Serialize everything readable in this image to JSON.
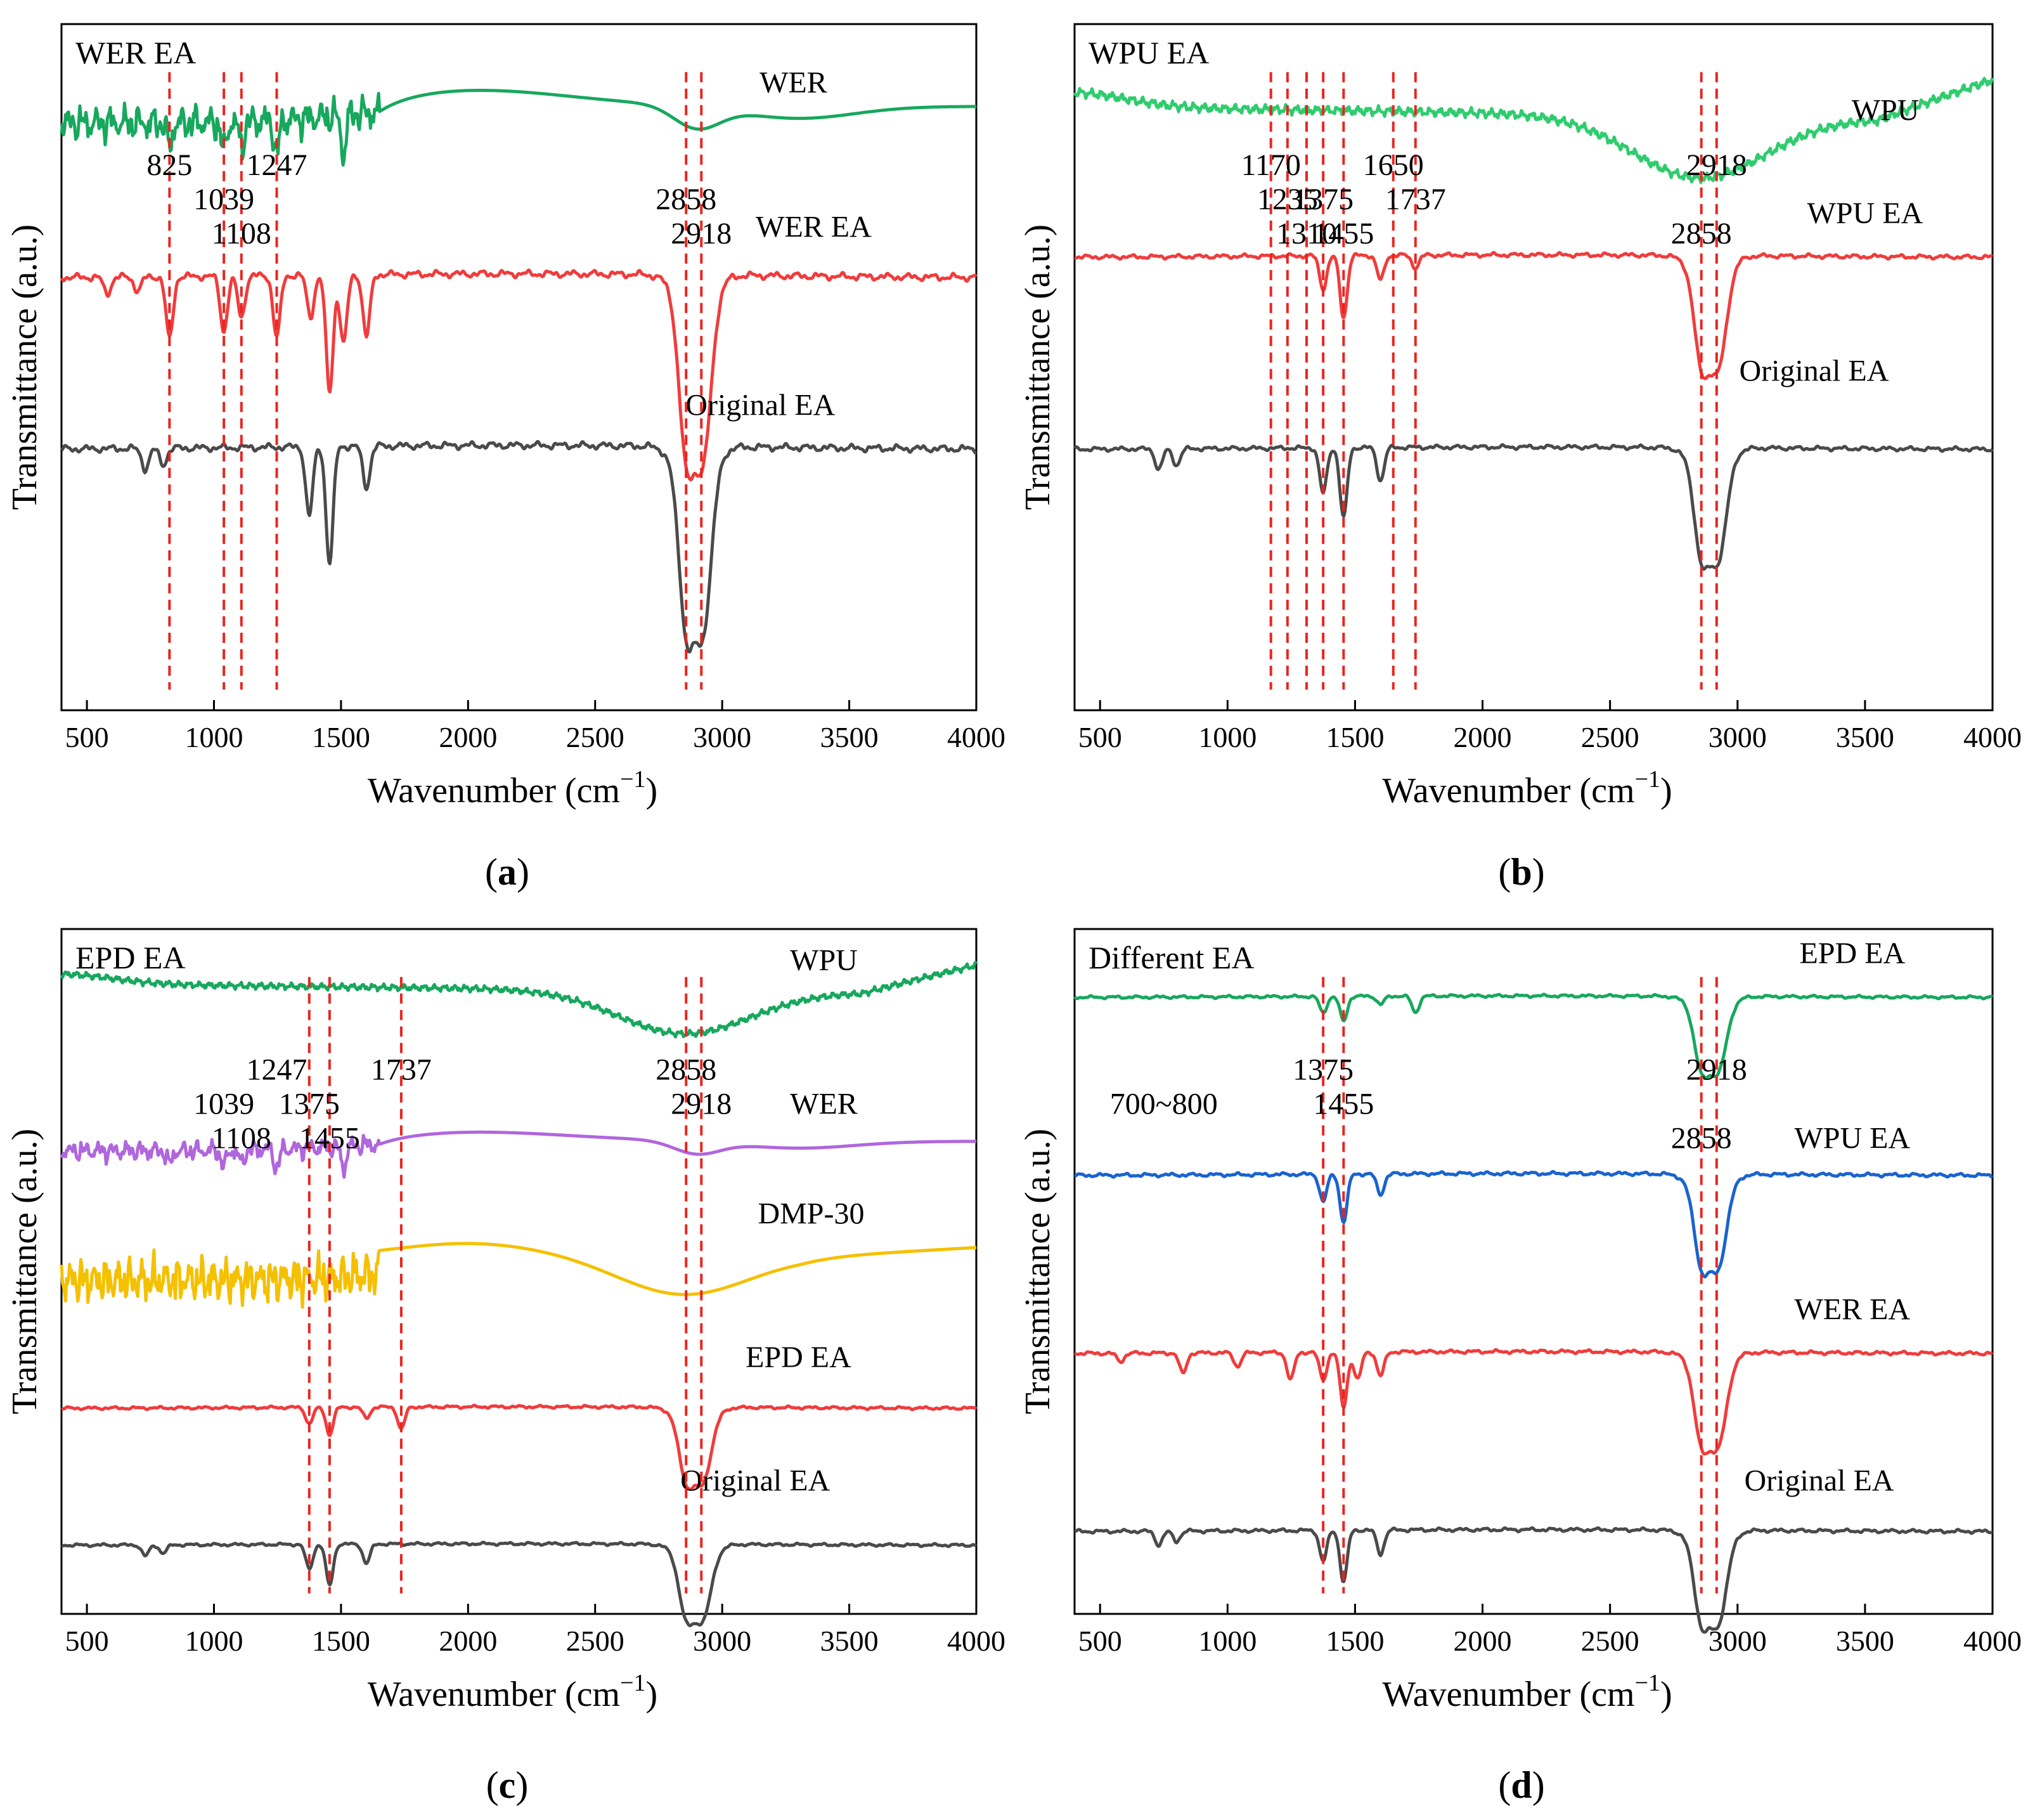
{
  "chart_data": [
    {
      "id": "a",
      "type": "line",
      "panel_title": "WER EA",
      "sublabel_letter": "a",
      "xlabel": "Wavenumber (cm",
      "xlabel_sup": "−1",
      "xlabel_close": ")",
      "ylabel": "Transmittance (a.u.)",
      "xlim": [
        400,
        4000
      ],
      "y_ticks_shown": false,
      "x_ticks": [
        500,
        1000,
        1500,
        2000,
        2500,
        3000,
        3500,
        4000
      ],
      "series": [
        {
          "name": "WER",
          "color": "#17a85e",
          "baseline": 0.12,
          "amp": 0.07,
          "shape": "wer"
        },
        {
          "name": "WER EA",
          "color": "#f03c3c",
          "baseline": 0.37,
          "amp": 0.2,
          "shape": "ea",
          "minors": [
            [
              580,
              0.12
            ],
            [
              700,
              0.1
            ],
            [
              825,
              0.45
            ],
            [
              1039,
              0.4
            ],
            [
              1108,
              0.3
            ],
            [
              1247,
              0.45
            ],
            [
              1380,
              0.3
            ],
            [
              1455,
              0.85
            ],
            [
              1510,
              0.5
            ],
            [
              1600,
              0.45
            ]
          ]
        },
        {
          "name": "Original EA",
          "color": "#4a4a4a",
          "baseline": 0.62,
          "amp": 0.2,
          "shape": "ea",
          "minors": [
            [
              730,
              0.15
            ],
            [
              800,
              0.12
            ],
            [
              1375,
              0.5
            ],
            [
              1455,
              0.85
            ],
            [
              1600,
              0.3
            ]
          ]
        }
      ],
      "series_labels": [
        {
          "text": "WER",
          "x": 3280,
          "y": 0.1
        },
        {
          "text": "WER EA",
          "x": 3360,
          "y": 0.31
        },
        {
          "text": "Original EA",
          "x": 3150,
          "y": 0.57
        }
      ],
      "annotations": [
        {
          "text": "825",
          "x": 825
        },
        {
          "text": "1039",
          "x": 1039
        },
        {
          "text": "1108",
          "x": 1108
        },
        {
          "text": "1247",
          "x": 1247
        },
        {
          "text": "2858",
          "x": 2858
        },
        {
          "text": "2918",
          "x": 2918
        }
      ],
      "vlines": [
        825,
        1039,
        1108,
        1247,
        2858,
        2918
      ]
    },
    {
      "id": "b",
      "type": "line",
      "panel_title": "WPU EA",
      "sublabel_letter": "b",
      "xlabel": "Wavenumber (cm",
      "xlabel_sup": "−1",
      "xlabel_close": ")",
      "ylabel": "Transmittance (a.u.)",
      "xlim": [
        400,
        4000
      ],
      "y_ticks_shown": false,
      "x_ticks": [
        500,
        1000,
        1500,
        2000,
        2500,
        3000,
        3500,
        4000
      ],
      "series": [
        {
          "name": "WPU",
          "color": "#2fcc6e",
          "baseline": 0.12,
          "amp": 0.1,
          "shape": "wpu"
        },
        {
          "name": "WPU EA",
          "color": "#f03c3c",
          "baseline": 0.34,
          "amp": 0.12,
          "shape": "ea",
          "minors": [
            [
              1375,
              0.4
            ],
            [
              1455,
              0.75
            ],
            [
              1600,
              0.3
            ],
            [
              1737,
              0.15
            ]
          ]
        },
        {
          "name": "Original EA",
          "color": "#4a4a4a",
          "baseline": 0.62,
          "amp": 0.12,
          "shape": "ea",
          "minors": [
            [
              730,
              0.25
            ],
            [
              800,
              0.2
            ],
            [
              1375,
              0.55
            ],
            [
              1455,
              0.85
            ],
            [
              1600,
              0.4
            ]
          ]
        }
      ],
      "series_labels": [
        {
          "text": "WPU",
          "x": 3580,
          "y": 0.14
        },
        {
          "text": "WPU EA",
          "x": 3500,
          "y": 0.29
        },
        {
          "text": "Original EA",
          "x": 3300,
          "y": 0.52
        }
      ],
      "annotations": [
        {
          "text": "1170",
          "x": 1170
        },
        {
          "text": "1235",
          "x": 1235
        },
        {
          "text": "1310",
          "x": 1310
        },
        {
          "text": "1650",
          "x": 1650
        },
        {
          "text": "1737",
          "x": 1737
        },
        {
          "text": "2858",
          "x": 2858
        },
        {
          "text": "2918",
          "x": 2918
        },
        {
          "text": "1375",
          "x": 1375
        },
        {
          "text": "1455",
          "x": 1455
        }
      ],
      "vlines": [
        1170,
        1235,
        1310,
        1650,
        1737,
        1375,
        1455,
        2858,
        2918
      ]
    },
    {
      "id": "c",
      "type": "line",
      "panel_title": "EPD EA",
      "sublabel_letter": "c",
      "xlabel": "Wavenumber (cm",
      "xlabel_sup": "−1",
      "xlabel_close": ")",
      "ylabel": "Transmittance (a.u.)",
      "xlim": [
        400,
        4000
      ],
      "y_ticks_shown": false,
      "x_ticks": [
        500,
        1000,
        1500,
        2000,
        2500,
        3000,
        3500,
        4000
      ],
      "series": [
        {
          "name": "WPU",
          "color": "#17a85e",
          "baseline": 0.08,
          "amp": 0.07,
          "shape": "wpu"
        },
        {
          "name": "WER",
          "color": "#b066dd",
          "baseline": 0.31,
          "amp": 0.04,
          "shape": "wer"
        },
        {
          "name": "DMP-30",
          "color": "#f5c000",
          "baseline": 0.48,
          "amp": 0.06,
          "shape": "dmp"
        },
        {
          "name": "EPD EA",
          "color": "#f03c3c",
          "baseline": 0.7,
          "amp": 0.08,
          "shape": "ea",
          "minors": [
            [
              1375,
              0.3
            ],
            [
              1455,
              0.5
            ],
            [
              1600,
              0.2
            ],
            [
              1737,
              0.4
            ]
          ]
        },
        {
          "name": "Original EA",
          "color": "#4a4a4a",
          "baseline": 0.9,
          "amp": 0.08,
          "shape": "ea",
          "minors": [
            [
              730,
              0.2
            ],
            [
              800,
              0.15
            ],
            [
              1375,
              0.45
            ],
            [
              1455,
              0.75
            ],
            [
              1600,
              0.35
            ]
          ]
        }
      ],
      "series_labels": [
        {
          "text": "WPU",
          "x": 3400,
          "y": 0.06
        },
        {
          "text": "WER",
          "x": 3400,
          "y": 0.27
        },
        {
          "text": "DMP-30",
          "x": 3350,
          "y": 0.43
        },
        {
          "text": "EPD EA",
          "x": 3300,
          "y": 0.64
        },
        {
          "text": "Original EA",
          "x": 3130,
          "y": 0.82
        }
      ],
      "annotations": [
        {
          "text": "1737",
          "x": 1737
        },
        {
          "text": "1039",
          "x": 1039
        },
        {
          "text": "1108",
          "x": 1108
        },
        {
          "text": "1247",
          "x": 1247
        },
        {
          "text": "1375",
          "x": 1375
        },
        {
          "text": "1455",
          "x": 1455
        },
        {
          "text": "2858",
          "x": 2858
        },
        {
          "text": "2918",
          "x": 2918
        }
      ],
      "vlines": [
        1375,
        1455,
        1737,
        2858,
        2918
      ]
    },
    {
      "id": "d",
      "type": "line",
      "panel_title": "Different EA",
      "sublabel_letter": "d",
      "xlabel": "Wavenumber (cm",
      "xlabel_sup": "−1",
      "xlabel_close": ")",
      "ylabel": "Transmittance (a.u.)",
      "xlim": [
        400,
        4000
      ],
      "y_ticks_shown": false,
      "x_ticks": [
        500,
        1000,
        1500,
        2000,
        2500,
        3000,
        3500,
        4000
      ],
      "series": [
        {
          "name": "EPD EA",
          "color": "#17a85e",
          "baseline": 0.1,
          "amp": 0.08,
          "shape": "ea",
          "minors": [
            [
              1375,
              0.3
            ],
            [
              1455,
              0.45
            ],
            [
              1600,
              0.15
            ],
            [
              1737,
              0.3
            ]
          ]
        },
        {
          "name": "WPU EA",
          "color": "#1a63d0",
          "baseline": 0.36,
          "amp": 0.1,
          "shape": "ea",
          "minors": [
            [
              1375,
              0.4
            ],
            [
              1455,
              0.7
            ],
            [
              1600,
              0.3
            ]
          ]
        },
        {
          "name": "WER EA",
          "color": "#f03c3c",
          "baseline": 0.62,
          "amp": 0.1,
          "shape": "ea",
          "minors": [
            [
              580,
              0.12
            ],
            [
              825,
              0.3
            ],
            [
              1039,
              0.2
            ],
            [
              1247,
              0.4
            ],
            [
              1375,
              0.4
            ],
            [
              1455,
              0.8
            ],
            [
              1510,
              0.4
            ],
            [
              1600,
              0.35
            ]
          ]
        },
        {
          "name": "Original EA",
          "color": "#4a4a4a",
          "baseline": 0.88,
          "amp": 0.1,
          "shape": "ea",
          "minors": [
            [
              730,
              0.2
            ],
            [
              800,
              0.15
            ],
            [
              1375,
              0.45
            ],
            [
              1455,
              0.75
            ],
            [
              1600,
              0.35
            ]
          ]
        }
      ],
      "series_labels": [
        {
          "text": "EPD EA",
          "x": 3450,
          "y": 0.05
        },
        {
          "text": "WPU EA",
          "x": 3450,
          "y": 0.32
        },
        {
          "text": "WER EA",
          "x": 3450,
          "y": 0.57
        },
        {
          "text": "Original EA",
          "x": 3320,
          "y": 0.82
        }
      ],
      "annotations": [
        {
          "text": "1375",
          "x": 1375
        },
        {
          "text": "1455",
          "x": 1455
        },
        {
          "text": "2858",
          "x": 2858
        },
        {
          "text": "2918",
          "x": 2918
        },
        {
          "text": "700~800",
          "x": 750
        }
      ],
      "vlines": [
        1375,
        1455,
        2858,
        2918
      ]
    }
  ]
}
